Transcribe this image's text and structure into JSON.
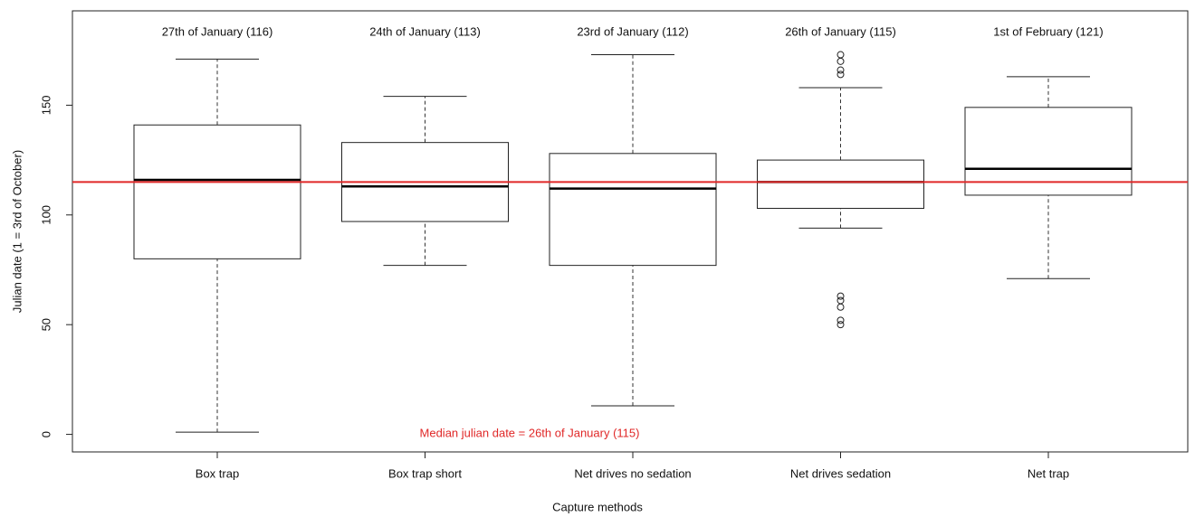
{
  "chart_data": {
    "type": "boxplot",
    "x_label": "Capture methods",
    "y_label": "Julian date (1 = 3rd of October)",
    "categories": [
      "Box trap",
      "Box trap short",
      "Net drives no sedation",
      "Net drives sedation",
      "Net trap"
    ],
    "top_labels": [
      "27th of January (116)",
      "24th of January (113)",
      "23rd of January (112)",
      "26th of January (115)",
      "1st of February (121)"
    ],
    "boxes": [
      {
        "min": 1,
        "q1": 80,
        "median": 116,
        "q3": 141,
        "max": 171,
        "outliers": []
      },
      {
        "min": 77,
        "q1": 97,
        "median": 113,
        "q3": 133,
        "max": 154,
        "outliers": []
      },
      {
        "min": 13,
        "q1": 77,
        "median": 112,
        "q3": 128,
        "max": 173,
        "outliers": []
      },
      {
        "min": 94,
        "q1": 103,
        "median": 115,
        "q3": 125,
        "max": 158,
        "outliers": [
          173,
          170,
          166,
          164,
          63,
          61,
          58,
          52,
          50
        ]
      },
      {
        "min": 71,
        "q1": 109,
        "median": 121,
        "q3": 149,
        "max": 163,
        "outliers": []
      }
    ],
    "reference_line": {
      "value": 115,
      "color": "#e02828",
      "label": "Median julian date = 26th of January (115)"
    },
    "ylim": [
      -8,
      193
    ],
    "yticks": [
      0,
      50,
      100,
      150
    ]
  }
}
